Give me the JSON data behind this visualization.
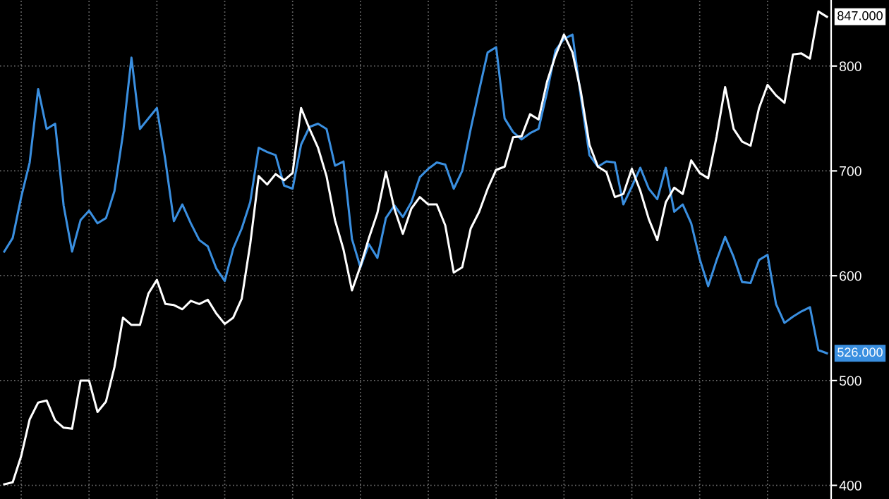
{
  "chart_data": {
    "type": "line",
    "categories": [
      null,
      null,
      null,
      null,
      null,
      null,
      null,
      null,
      null,
      null,
      null,
      null,
      null,
      null,
      null,
      null,
      null,
      null,
      null,
      null,
      null,
      null,
      null,
      null,
      null,
      null,
      null,
      null,
      null,
      null,
      null,
      null,
      null,
      null,
      null,
      null,
      null,
      null,
      null,
      null,
      null,
      null,
      null,
      null,
      null,
      null,
      null,
      null,
      null,
      null,
      null,
      null,
      null,
      null,
      null,
      null,
      null,
      null,
      null,
      null,
      null,
      null,
      null,
      null,
      null,
      null,
      null,
      null,
      null,
      null,
      null,
      null,
      null,
      null,
      null,
      null,
      null,
      null,
      null,
      null,
      null,
      null,
      null,
      null,
      null,
      null,
      null,
      null,
      null,
      null,
      null,
      null,
      null,
      null,
      null,
      null,
      null,
      null
    ],
    "ylim": [
      387,
      863
    ],
    "yticks": [
      400,
      500,
      600,
      700,
      800
    ],
    "grid": true,
    "tick_labels": "y",
    "line_style": "solid",
    "series": [
      {
        "color": "#3a8fe0",
        "values": [
          623,
          636,
          675,
          708,
          778,
          740,
          745,
          667,
          623,
          653,
          662,
          650,
          655,
          681,
          735,
          808,
          740,
          750,
          760,
          710,
          652,
          668,
          650,
          634,
          628,
          607,
          595,
          626,
          645,
          670,
          722,
          718,
          715,
          686,
          683,
          725,
          742,
          745,
          740,
          705,
          709,
          635,
          608,
          630,
          617,
          655,
          667,
          656,
          670,
          694,
          702,
          708,
          706,
          683,
          700,
          740,
          777,
          813,
          818,
          750,
          737,
          730,
          736,
          740,
          775,
          815,
          826,
          830,
          770,
          715,
          704,
          709,
          708,
          668,
          685,
          703,
          683,
          673,
          703,
          661,
          668,
          650,
          616,
          590,
          615,
          637,
          618,
          594,
          593,
          615,
          620,
          573,
          555,
          561,
          566,
          570,
          529,
          526
        ]
      },
      {
        "color": "#ffffff",
        "values": [
          401,
          403,
          428,
          463,
          479,
          481,
          462,
          455,
          454,
          500,
          500,
          470,
          480,
          513,
          560,
          553,
          553,
          583,
          596,
          573,
          572,
          568,
          576,
          573,
          577,
          564,
          554,
          560,
          578,
          630,
          695,
          687,
          697,
          691,
          698,
          760,
          740,
          722,
          695,
          653,
          625,
          586,
          609,
          636,
          660,
          699,
          664,
          640,
          664,
          675,
          668,
          668,
          648,
          603,
          608,
          645,
          661,
          683,
          701,
          704,
          732,
          733,
          754,
          749,
          785,
          810,
          830,
          813,
          775,
          725,
          704,
          699,
          675,
          678,
          702,
          681,
          654,
          634,
          670,
          684,
          678,
          710,
          698,
          693,
          733,
          780,
          740,
          728,
          724,
          760,
          782,
          772,
          765,
          811,
          812,
          807,
          852,
          847
        ]
      }
    ],
    "annotations": [
      "526.000",
      "847.000"
    ]
  }
}
